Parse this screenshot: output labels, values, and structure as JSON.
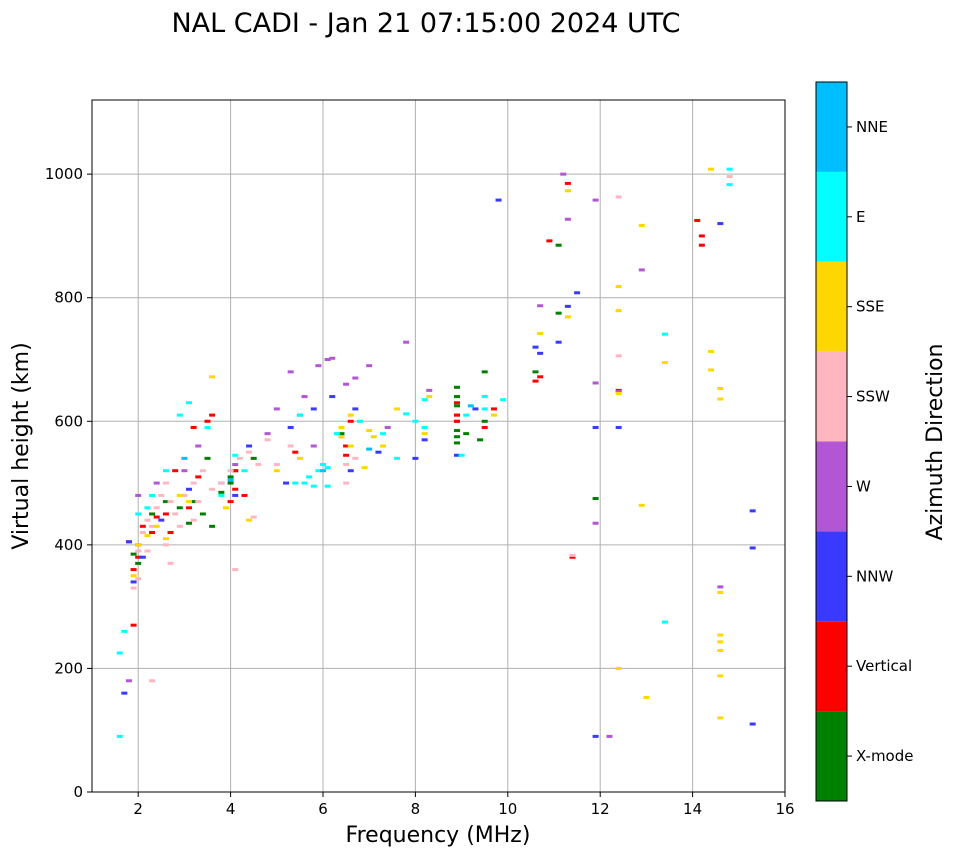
{
  "chart_data": {
    "type": "scatter",
    "title": "NAL CADI - Jan 21 07:15:00 2024 UTC",
    "xlabel": "Frequency (MHz)",
    "ylabel": "Virtual height (km)",
    "xlim": [
      1.0,
      16.0
    ],
    "ylim": [
      0,
      1120
    ],
    "xticks": [
      2,
      4,
      6,
      8,
      10,
      12,
      14,
      16
    ],
    "yticks": [
      0,
      200,
      400,
      600,
      800,
      1000
    ],
    "grid": true,
    "colorbar": {
      "label": "Azimuth Direction",
      "categories": [
        {
          "name": "X-mode",
          "color": "#008000"
        },
        {
          "name": "Vertical",
          "color": "#ff0000"
        },
        {
          "name": "NNW",
          "color": "#3a3aff"
        },
        {
          "name": "W",
          "color": "#b356d6"
        },
        {
          "name": "SSW",
          "color": "#ffb6c1"
        },
        {
          "name": "SSE",
          "color": "#ffd700"
        },
        {
          "name": "E",
          "color": "#00ffff"
        },
        {
          "name": "NNE",
          "color": "#00bfff"
        }
      ]
    },
    "series": [
      {
        "name": "X-mode",
        "points": [
          [
            1.9,
            385
          ],
          [
            2.0,
            370
          ],
          [
            2.3,
            450
          ],
          [
            2.6,
            470
          ],
          [
            2.9,
            460
          ],
          [
            3.2,
            470
          ],
          [
            3.4,
            450
          ],
          [
            3.6,
            430
          ],
          [
            3.8,
            485
          ],
          [
            4.0,
            510
          ],
          [
            4.0,
            500
          ],
          [
            4.1,
            520
          ],
          [
            4.5,
            540
          ],
          [
            6.4,
            580
          ],
          [
            8.9,
            565
          ],
          [
            8.9,
            575
          ],
          [
            8.9,
            585
          ],
          [
            8.9,
            600
          ],
          [
            8.9,
            610
          ],
          [
            8.9,
            625
          ],
          [
            8.9,
            640
          ],
          [
            8.9,
            655
          ],
          [
            9.1,
            580
          ],
          [
            9.4,
            570
          ],
          [
            9.5,
            600
          ],
          [
            9.5,
            680
          ],
          [
            10.6,
            680
          ],
          [
            11.1,
            775
          ],
          [
            11.1,
            885
          ],
          [
            11.9,
            475
          ],
          [
            3.1,
            435
          ],
          [
            3.5,
            540
          ]
        ]
      },
      {
        "name": "Vertical",
        "points": [
          [
            1.8,
            405
          ],
          [
            1.9,
            360
          ],
          [
            1.9,
            270
          ],
          [
            2.0,
            380
          ],
          [
            2.0,
            400
          ],
          [
            2.1,
            430
          ],
          [
            2.3,
            420
          ],
          [
            2.4,
            445
          ],
          [
            2.6,
            450
          ],
          [
            2.8,
            520
          ],
          [
            3.1,
            460
          ],
          [
            3.2,
            590
          ],
          [
            3.3,
            510
          ],
          [
            3.5,
            600
          ],
          [
            3.6,
            610
          ],
          [
            4.0,
            470
          ],
          [
            4.1,
            490
          ],
          [
            4.1,
            520
          ],
          [
            5.4,
            550
          ],
          [
            6.5,
            545
          ],
          [
            6.5,
            560
          ],
          [
            6.6,
            600
          ],
          [
            8.9,
            600
          ],
          [
            8.9,
            610
          ],
          [
            8.9,
            630
          ],
          [
            9.5,
            590
          ],
          [
            9.7,
            620
          ],
          [
            10.6,
            665
          ],
          [
            10.7,
            672
          ],
          [
            10.9,
            892
          ],
          [
            11.3,
            985
          ],
          [
            11.4,
            380
          ],
          [
            12.4,
            650
          ],
          [
            14.1,
            925
          ],
          [
            14.2,
            900
          ],
          [
            14.2,
            885
          ],
          [
            4.3,
            480
          ],
          [
            2.7,
            420
          ]
        ]
      },
      {
        "name": "NNW",
        "points": [
          [
            1.7,
            160
          ],
          [
            1.8,
            405
          ],
          [
            1.9,
            340
          ],
          [
            2.1,
            380
          ],
          [
            2.5,
            440
          ],
          [
            3.1,
            490
          ],
          [
            3.8,
            500
          ],
          [
            4.1,
            480
          ],
          [
            4.4,
            560
          ],
          [
            5.3,
            590
          ],
          [
            5.5,
            610
          ],
          [
            5.8,
            620
          ],
          [
            6.2,
            640
          ],
          [
            6.7,
            620
          ],
          [
            7.2,
            550
          ],
          [
            8.0,
            540
          ],
          [
            8.2,
            570
          ],
          [
            8.9,
            545
          ],
          [
            9.3,
            620
          ],
          [
            9.8,
            958
          ],
          [
            10.6,
            720
          ],
          [
            10.7,
            710
          ],
          [
            11.1,
            728
          ],
          [
            11.3,
            786
          ],
          [
            11.5,
            808
          ],
          [
            11.9,
            90
          ],
          [
            11.9,
            590
          ],
          [
            12.4,
            590
          ],
          [
            14.6,
            920
          ],
          [
            15.3,
            455
          ],
          [
            15.3,
            395
          ],
          [
            15.3,
            110
          ],
          [
            6.6,
            520
          ],
          [
            5.2,
            500
          ]
        ]
      },
      {
        "name": "W",
        "points": [
          [
            1.8,
            180
          ],
          [
            2.0,
            480
          ],
          [
            2.4,
            500
          ],
          [
            3.0,
            520
          ],
          [
            3.3,
            560
          ],
          [
            4.1,
            530
          ],
          [
            4.8,
            580
          ],
          [
            5.0,
            620
          ],
          [
            5.3,
            680
          ],
          [
            5.6,
            640
          ],
          [
            5.9,
            690
          ],
          [
            6.1,
            700
          ],
          [
            6.2,
            702
          ],
          [
            6.5,
            660
          ],
          [
            6.7,
            670
          ],
          [
            7.0,
            690
          ],
          [
            7.4,
            590
          ],
          [
            7.8,
            728
          ],
          [
            8.3,
            650
          ],
          [
            10.7,
            787
          ],
          [
            11.2,
            1000
          ],
          [
            11.3,
            927
          ],
          [
            11.9,
            958
          ],
          [
            11.9,
            662
          ],
          [
            11.9,
            435
          ],
          [
            12.2,
            90
          ],
          [
            12.4,
            648
          ],
          [
            12.9,
            845
          ],
          [
            14.6,
            332
          ],
          [
            5.8,
            560
          ],
          [
            6.4,
            575
          ]
        ]
      },
      {
        "name": "SSW",
        "points": [
          [
            1.9,
            330
          ],
          [
            2.0,
            390
          ],
          [
            2.1,
            420
          ],
          [
            2.2,
            440
          ],
          [
            2.3,
            430
          ],
          [
            2.4,
            460
          ],
          [
            2.5,
            480
          ],
          [
            2.6,
            500
          ],
          [
            2.7,
            470
          ],
          [
            2.8,
            450
          ],
          [
            2.9,
            430
          ],
          [
            3.0,
            480
          ],
          [
            3.2,
            500
          ],
          [
            3.3,
            470
          ],
          [
            3.4,
            520
          ],
          [
            3.6,
            490
          ],
          [
            3.8,
            500
          ],
          [
            4.0,
            520
          ],
          [
            4.1,
            360
          ],
          [
            4.2,
            540
          ],
          [
            4.4,
            550
          ],
          [
            4.5,
            445
          ],
          [
            4.6,
            530
          ],
          [
            4.8,
            570
          ],
          [
            5.0,
            530
          ],
          [
            5.3,
            560
          ],
          [
            6.5,
            500
          ],
          [
            6.5,
            530
          ],
          [
            6.7,
            540
          ],
          [
            2.3,
            180
          ],
          [
            2.0,
            345
          ],
          [
            2.7,
            370
          ],
          [
            3.2,
            440
          ],
          [
            11.4,
            383
          ],
          [
            12.4,
            963
          ],
          [
            12.4,
            706
          ],
          [
            14.8,
            996
          ],
          [
            2.6,
            400
          ],
          [
            2.2,
            390
          ]
        ]
      },
      {
        "name": "SSE",
        "points": [
          [
            1.9,
            350
          ],
          [
            2.0,
            400
          ],
          [
            2.2,
            415
          ],
          [
            2.4,
            430
          ],
          [
            2.6,
            410
          ],
          [
            2.9,
            480
          ],
          [
            3.1,
            470
          ],
          [
            3.6,
            672
          ],
          [
            3.9,
            460
          ],
          [
            4.4,
            440
          ],
          [
            5.0,
            520
          ],
          [
            5.5,
            540
          ],
          [
            6.4,
            590
          ],
          [
            6.4,
            575
          ],
          [
            6.6,
            610
          ],
          [
            6.6,
            560
          ],
          [
            6.8,
            600
          ],
          [
            7.0,
            585
          ],
          [
            7.3,
            560
          ],
          [
            7.6,
            620
          ],
          [
            8.2,
            580
          ],
          [
            8.3,
            640
          ],
          [
            9.7,
            610
          ],
          [
            10.7,
            742
          ],
          [
            11.3,
            973
          ],
          [
            11.3,
            769
          ],
          [
            12.4,
            818
          ],
          [
            12.4,
            779
          ],
          [
            12.4,
            645
          ],
          [
            12.4,
            200
          ],
          [
            12.9,
            917
          ],
          [
            12.9,
            464
          ],
          [
            13.0,
            153
          ],
          [
            13.4,
            695
          ],
          [
            14.4,
            1008
          ],
          [
            14.4,
            713
          ],
          [
            14.4,
            683
          ],
          [
            14.6,
            653
          ],
          [
            14.6,
            636
          ],
          [
            14.6,
            323
          ],
          [
            14.6,
            254
          ],
          [
            14.6,
            243
          ],
          [
            14.6,
            229
          ],
          [
            14.6,
            188
          ],
          [
            14.6,
            120
          ],
          [
            6.9,
            525
          ],
          [
            7.1,
            575
          ]
        ]
      },
      {
        "name": "E",
        "points": [
          [
            1.6,
            90
          ],
          [
            1.6,
            225
          ],
          [
            1.7,
            260
          ],
          [
            2.0,
            450
          ],
          [
            2.2,
            460
          ],
          [
            2.3,
            480
          ],
          [
            2.6,
            520
          ],
          [
            2.9,
            610
          ],
          [
            3.1,
            630
          ],
          [
            3.5,
            590
          ],
          [
            3.8,
            480
          ],
          [
            4.1,
            545
          ],
          [
            4.3,
            520
          ],
          [
            5.5,
            610
          ],
          [
            5.6,
            500
          ],
          [
            5.7,
            510
          ],
          [
            5.9,
            520
          ],
          [
            6.0,
            530
          ],
          [
            6.1,
            525
          ],
          [
            6.1,
            495
          ],
          [
            6.3,
            580
          ],
          [
            6.8,
            600
          ],
          [
            7.3,
            580
          ],
          [
            7.6,
            540
          ],
          [
            7.8,
            612
          ],
          [
            8.0,
            600
          ],
          [
            8.2,
            590
          ],
          [
            8.2,
            635
          ],
          [
            9.0,
            545
          ],
          [
            9.1,
            610
          ],
          [
            9.5,
            620
          ],
          [
            9.5,
            640
          ],
          [
            9.9,
            635
          ],
          [
            13.4,
            741
          ],
          [
            13.4,
            275
          ],
          [
            14.8,
            983
          ],
          [
            14.8,
            1008
          ],
          [
            5.4,
            500
          ],
          [
            5.8,
            495
          ]
        ]
      },
      {
        "name": "NNE",
        "points": [
          [
            3.0,
            540
          ],
          [
            4.0,
            505
          ],
          [
            6.0,
            520
          ],
          [
            7.0,
            555
          ],
          [
            9.2,
            625
          ]
        ]
      }
    ]
  }
}
